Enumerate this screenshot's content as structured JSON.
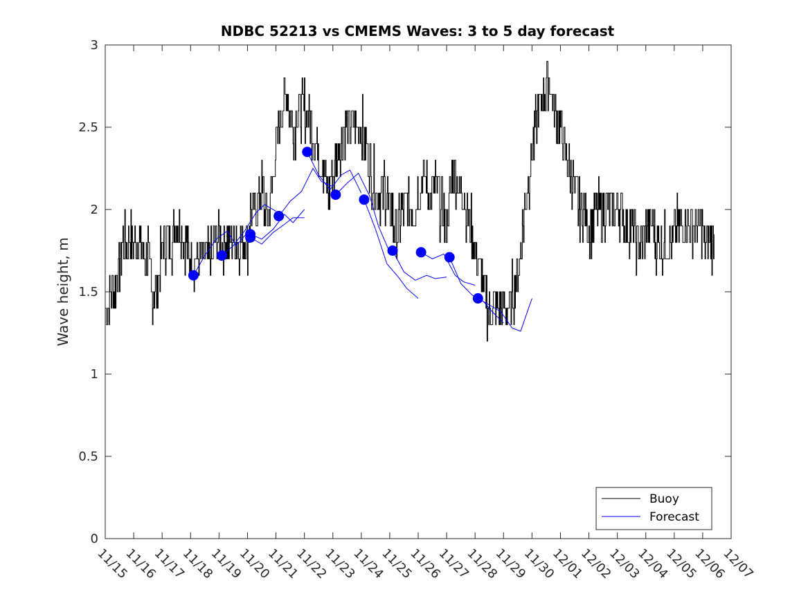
{
  "chart_data": {
    "type": "line",
    "title": "NDBC 52213 vs CMEMS Waves: 3 to 5 day forecast",
    "xlabel": "",
    "ylabel": "Wave height, m",
    "xlim": [
      0,
      22
    ],
    "ylim": [
      0,
      3
    ],
    "grid": false,
    "legend_position": "bottom-right",
    "x_tick_labels": [
      "11/15",
      "11/16",
      "11/17",
      "11/18",
      "11/19",
      "11/20",
      "11/21",
      "11/22",
      "11/23",
      "11/24",
      "11/25",
      "11/26",
      "11/27",
      "11/28",
      "11/29",
      "11/30",
      "12/01",
      "12/02",
      "12/03",
      "12/04",
      "12/05",
      "12/06",
      "12/07"
    ],
    "y_ticks": [
      0,
      0.5,
      1,
      1.5,
      2,
      2.5,
      3
    ],
    "y_tick_labels": [
      "0",
      "0.5",
      "1",
      "1.5",
      "2",
      "2.5",
      "3"
    ],
    "legend": [
      {
        "name": "Buoy",
        "color": "#000000"
      },
      {
        "name": "Forecast",
        "color": "#0000ff"
      }
    ],
    "buoy": {
      "name": "Buoy",
      "color": "#000000",
      "x": [
        0,
        0.3,
        0.5,
        0.6,
        0.9,
        1.0,
        1.2,
        1.4,
        1.5,
        1.6,
        1.8,
        2.0,
        2.2,
        2.4,
        2.6,
        2.8,
        3.0,
        3.2,
        3.5,
        3.8,
        4.0,
        4.3,
        4.6,
        4.9,
        5.0,
        5.1,
        5.3,
        5.5,
        5.6,
        5.8,
        6.0,
        6.2,
        6.4,
        6.6,
        6.8,
        7.0,
        7.2,
        7.4,
        7.6,
        7.8,
        8.0,
        8.2,
        8.4,
        8.6,
        8.8,
        9.0,
        9.2,
        9.4,
        9.6,
        9.8,
        10.0,
        10.2,
        10.4,
        10.6,
        10.8,
        11.0,
        11.2,
        11.4,
        11.6,
        11.8,
        12.0,
        12.2,
        12.4,
        12.6,
        12.8,
        13.0,
        13.2,
        13.4,
        13.6,
        13.8,
        14.0,
        14.2,
        14.4,
        14.6,
        14.8,
        15.0,
        15.2,
        15.4,
        15.6,
        15.8,
        16.0,
        16.2,
        16.4,
        16.6,
        16.8,
        17.0,
        17.2,
        17.4,
        17.6,
        17.8,
        18.0,
        18.2,
        18.4,
        18.6,
        18.8,
        19.0,
        19.2,
        19.4,
        19.6,
        19.8,
        20.0,
        20.2,
        20.4,
        20.6,
        20.8,
        21.0,
        21.2,
        21.4
      ],
      "y": [
        1.4,
        1.5,
        1.65,
        1.8,
        1.85,
        1.75,
        1.8,
        1.7,
        1.75,
        1.55,
        1.5,
        1.75,
        1.8,
        1.85,
        1.9,
        1.8,
        1.7,
        1.65,
        1.7,
        1.75,
        1.8,
        1.75,
        1.85,
        1.75,
        1.8,
        1.95,
        2.0,
        2.15,
        2.0,
        2.05,
        2.35,
        2.6,
        2.7,
        2.5,
        2.6,
        2.65,
        2.55,
        2.4,
        2.3,
        2.1,
        2.2,
        2.35,
        2.5,
        2.55,
        2.45,
        2.5,
        2.35,
        2.2,
        2.1,
        2.15,
        2.0,
        1.9,
        1.95,
        2.05,
        1.95,
        2.1,
        2.2,
        2.1,
        2.15,
        2.0,
        1.9,
        2.2,
        2.15,
        2.1,
        1.9,
        1.75,
        1.6,
        1.45,
        1.4,
        1.35,
        1.4,
        1.35,
        1.55,
        1.75,
        2.1,
        2.35,
        2.55,
        2.7,
        2.8,
        2.6,
        2.5,
        2.3,
        2.2,
        2.05,
        2.0,
        1.9,
        1.95,
        2.0,
        1.95,
        2.0,
        2.05,
        1.95,
        1.9,
        1.85,
        1.8,
        1.85,
        1.9,
        1.8,
        1.75,
        1.8,
        1.85,
        1.9,
        1.95,
        1.85,
        1.9,
        1.85,
        1.8,
        1.85
      ]
    },
    "forecast_segments": [
      {
        "x": [
          3.1,
          3.5,
          3.9,
          4.3,
          4.6,
          5.0
        ],
        "y": [
          1.6,
          1.72,
          1.82,
          1.87,
          1.78,
          1.86
        ]
      },
      {
        "x": [
          4.1,
          4.5,
          4.9,
          5.3,
          5.6,
          6.0
        ],
        "y": [
          1.72,
          1.78,
          1.87,
          1.98,
          2.03,
          1.99
        ]
      },
      {
        "x": [
          5.1,
          5.5,
          5.9,
          6.3,
          6.6,
          7.0
        ],
        "y": [
          1.85,
          1.82,
          1.88,
          1.97,
          1.92,
          2.0
        ]
      },
      {
        "x": [
          5.1,
          5.5,
          5.9,
          6.3,
          6.6,
          7.0
        ],
        "y": [
          1.83,
          1.79,
          1.86,
          1.91,
          1.95,
          1.95
        ]
      },
      {
        "x": [
          6.1,
          6.5,
          6.9,
          7.3,
          7.6,
          8.0
        ],
        "y": [
          1.96,
          2.05,
          2.11,
          2.25,
          2.17,
          2.14
        ]
      },
      {
        "x": [
          7.1,
          7.5,
          7.9,
          8.3,
          8.6,
          9.0
        ],
        "y": [
          2.35,
          2.21,
          2.12,
          2.21,
          2.24,
          2.1
        ]
      },
      {
        "x": [
          8.1,
          8.5,
          8.9,
          9.3,
          9.6,
          10.0
        ],
        "y": [
          2.09,
          2.16,
          2.22,
          2.08,
          1.9,
          1.74
        ]
      },
      {
        "x": [
          9.1,
          9.5,
          9.9,
          10.3,
          10.6,
          11.0
        ],
        "y": [
          2.06,
          1.88,
          1.67,
          1.59,
          1.52,
          1.46
        ]
      },
      {
        "x": [
          10.1,
          10.5,
          10.9,
          11.3,
          11.6,
          12.0
        ],
        "y": [
          1.75,
          1.62,
          1.57,
          1.6,
          1.58,
          1.59
        ]
      },
      {
        "x": [
          11.1,
          11.5,
          11.9,
          12.3,
          12.6,
          13.0
        ],
        "y": [
          1.74,
          1.7,
          1.73,
          1.6,
          1.56,
          1.54
        ]
      },
      {
        "x": [
          12.1,
          12.5,
          12.9,
          13.3,
          13.6,
          14.0
        ],
        "y": [
          1.71,
          1.55,
          1.48,
          1.44,
          1.38,
          1.31
        ]
      },
      {
        "x": [
          13.1,
          13.5,
          13.9,
          14.3,
          14.6,
          15.0
        ],
        "y": [
          1.46,
          1.42,
          1.38,
          1.28,
          1.26,
          1.46
        ]
      }
    ],
    "forecast_points": {
      "x": [
        3.1,
        4.1,
        5.1,
        5.1,
        6.1,
        7.1,
        8.1,
        9.1,
        10.1,
        11.1,
        12.1,
        13.1
      ],
      "y": [
        1.6,
        1.72,
        1.85,
        1.83,
        1.96,
        2.35,
        2.09,
        2.06,
        1.75,
        1.74,
        1.71,
        1.46
      ]
    }
  }
}
